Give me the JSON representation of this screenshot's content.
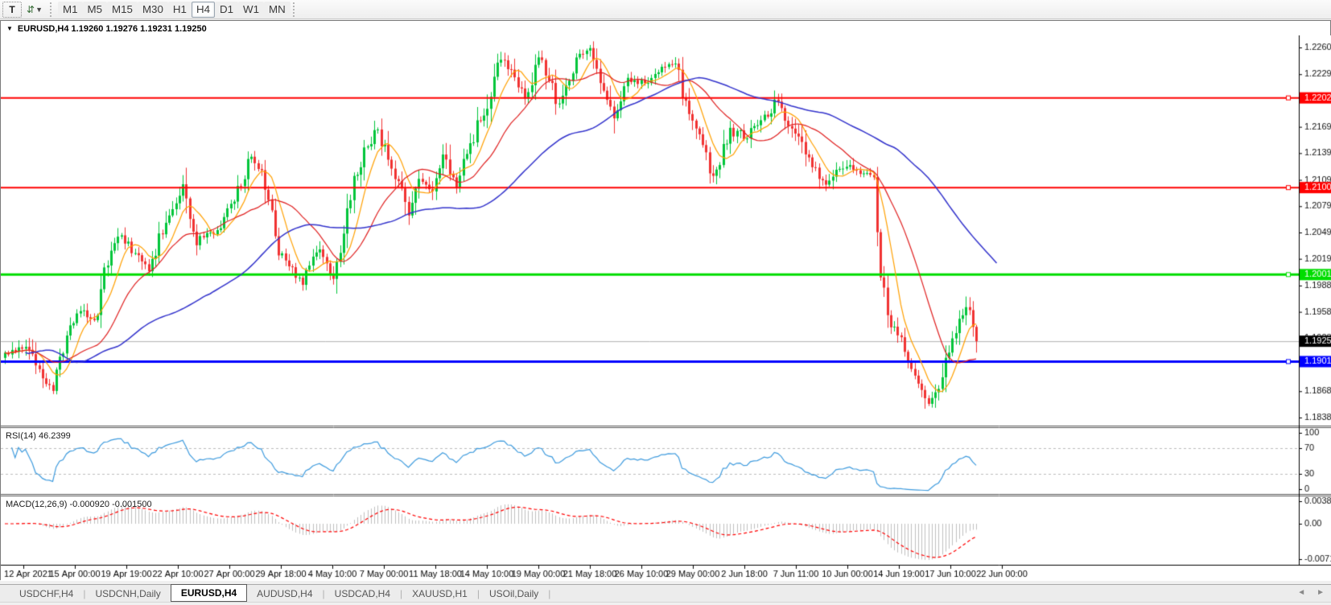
{
  "toolbar": {
    "text_tool_label": "T",
    "timeframes": [
      "M1",
      "M5",
      "M15",
      "M30",
      "H1",
      "H4",
      "D1",
      "W1",
      "MN"
    ],
    "active_timeframe": "H4"
  },
  "chart_window": {
    "title": "EURUSD,H4 1.19260 1.19276 1.19231 1.19250",
    "dropdown_icon": "▼"
  },
  "bottom_tabs": {
    "tabs": [
      "USDCHF,H4",
      "USDCNH,Daily",
      "EURUSD,H4",
      "AUDUSD,H4",
      "USDCAD,H4",
      "XAUUSD,H1",
      "USOil,Daily"
    ],
    "active_tab": "EURUSD,H4",
    "scroll_left_icon": "◄",
    "scroll_right_icon": "►"
  },
  "chart_data": {
    "type": "candlestick",
    "symbol": "EURUSD",
    "timeframe": "H4",
    "title": "EURUSD,H4 1.19260 1.19276 1.19231 1.19250",
    "ohlc_display": {
      "open": "1.19260",
      "high": "1.19276",
      "low": "1.19231",
      "close": "1.19250"
    },
    "main": {
      "ylim": [
        1.183,
        1.2274
      ],
      "price_axis_ticks": [
        "1.22600",
        "1.22295",
        "1.21995",
        "1.21695",
        "1.21395",
        "1.21090",
        "1.20790",
        "1.20490",
        "1.20190",
        "1.19885",
        "1.19585",
        "1.19285",
        "1.18985",
        "1.18680",
        "1.18380"
      ],
      "levels": [
        {
          "price": 1.22025,
          "label": "1.22025",
          "color": "#ff0000",
          "thickness": 2
        },
        {
          "price": 1.21002,
          "label": "1.21002",
          "color": "#ff0000",
          "thickness": 2
        },
        {
          "price": 1.2001,
          "label": "1.20010",
          "color": "#00dd00",
          "thickness": 3
        },
        {
          "price": 1.19018,
          "label": "1.19018",
          "color": "#0000ff",
          "thickness": 3
        }
      ],
      "current_price": {
        "value": 1.1925,
        "label": "1.19250",
        "line_color": "#b0b0b0"
      },
      "candle_count": 285,
      "bull_color": "#00c53a",
      "bear_color": "#f13232",
      "close_anchors": [
        [
          0,
          1.1912
        ],
        [
          6,
          1.192
        ],
        [
          9,
          1.1893
        ],
        [
          14,
          1.187
        ],
        [
          18,
          1.1932
        ],
        [
          22,
          1.1958
        ],
        [
          27,
          1.1952
        ],
        [
          29,
          1.2008
        ],
        [
          33,
          1.2048
        ],
        [
          36,
          1.2035
        ],
        [
          42,
          1.2008
        ],
        [
          47,
          1.2058
        ],
        [
          52,
          1.2098
        ],
        [
          56,
          1.204
        ],
        [
          62,
          1.2052
        ],
        [
          67,
          1.2085
        ],
        [
          72,
          1.2133
        ],
        [
          75,
          1.212
        ],
        [
          80,
          1.2032
        ],
        [
          87,
          1.199
        ],
        [
          92,
          1.2035
        ],
        [
          96,
          1.1995
        ],
        [
          101,
          1.209
        ],
        [
          106,
          1.2152
        ],
        [
          109,
          1.2165
        ],
        [
          114,
          1.2115
        ],
        [
          118,
          1.2065
        ],
        [
          121,
          1.2108
        ],
        [
          125,
          1.209
        ],
        [
          128,
          1.2133
        ],
        [
          132,
          1.21
        ],
        [
          135,
          1.214
        ],
        [
          140,
          1.2185
        ],
        [
          145,
          1.2248
        ],
        [
          149,
          1.2225
        ],
        [
          152,
          1.2196
        ],
        [
          156,
          1.2248
        ],
        [
          162,
          1.2196
        ],
        [
          167,
          1.2248
        ],
        [
          171,
          1.2258
        ],
        [
          175,
          1.2212
        ],
        [
          178,
          1.2172
        ],
        [
          182,
          1.2222
        ],
        [
          187,
          1.222
        ],
        [
          192,
          1.2234
        ],
        [
          196,
          1.2244
        ],
        [
          200,
          1.2186
        ],
        [
          207,
          1.211
        ],
        [
          212,
          1.2163
        ],
        [
          217,
          1.216
        ],
        [
          221,
          1.2175
        ],
        [
          226,
          1.2198
        ],
        [
          231,
          1.2155
        ],
        [
          236,
          1.2125
        ],
        [
          240,
          1.2106
        ],
        [
          245,
          1.2128
        ],
        [
          249,
          1.212
        ],
        [
          254,
          1.2114
        ],
        [
          256,
          1.2
        ],
        [
          259,
          1.1945
        ],
        [
          262,
          1.1925
        ],
        [
          267,
          1.1878
        ],
        [
          269,
          1.185
        ],
        [
          272,
          1.1868
        ],
        [
          275,
          1.19
        ],
        [
          279,
          1.1945
        ],
        [
          281,
          1.1972
        ],
        [
          283,
          1.1938
        ],
        [
          284,
          1.1925
        ]
      ],
      "moving_averages": [
        {
          "period": 8,
          "color": "#ffa000",
          "width": 1.2,
          "shift": 0
        },
        {
          "period": 21,
          "color": "#e02020",
          "width": 1.2,
          "shift": 0
        },
        {
          "period": 55,
          "color": "#3333cc",
          "width": 1.5,
          "shift": 6
        }
      ]
    },
    "rsi": {
      "label": "RSI(14) 46.2399",
      "period": 14,
      "value": 46.2399,
      "scale": [
        0,
        100
      ],
      "level_lines": [
        70,
        30
      ],
      "axis_labels": [
        "100",
        "70",
        "30",
        "0"
      ],
      "line_color": "#3e9bde",
      "level_line_color": "#bbbbbb"
    },
    "macd": {
      "label": "MACD(12,26,9) -0.000920 -0.001500",
      "fast": 12,
      "slow": 26,
      "signal": 9,
      "main_value": -0.00092,
      "signal_value": -0.0015,
      "axis_labels": [
        "0.003873",
        "0.00",
        "-0.007195"
      ],
      "histogram_color": "#c0c0c0",
      "signal_color": "#ff0000"
    },
    "time_axis": {
      "labels": [
        [
          "12 Apr 2021",
          28
        ],
        [
          "15 Apr 00:00",
          92
        ],
        [
          "19 Apr 19:00",
          156
        ],
        [
          "22 Apr 10:00",
          220
        ],
        [
          "27 Apr 00:00",
          284
        ],
        [
          "29 Apr 18:00",
          348
        ],
        [
          "4 May 10:00",
          412
        ],
        [
          "7 May 00:00",
          476
        ],
        [
          "11 May 18:00",
          540
        ],
        [
          "14 May 10:00",
          604
        ],
        [
          "19 May 00:00",
          668
        ],
        [
          "21 May 18:00",
          732
        ],
        [
          "26 May 10:00",
          796
        ],
        [
          "29 May 00:00",
          860
        ],
        [
          "2 Jun 18:00",
          924
        ],
        [
          "7 Jun 11:00",
          988
        ],
        [
          "10 Jun 00:00",
          1052
        ],
        [
          "14 Jun 19:00",
          1116
        ],
        [
          "17 Jun 10:00",
          1180
        ],
        [
          "22 Jun 00:00",
          1244
        ]
      ]
    }
  }
}
